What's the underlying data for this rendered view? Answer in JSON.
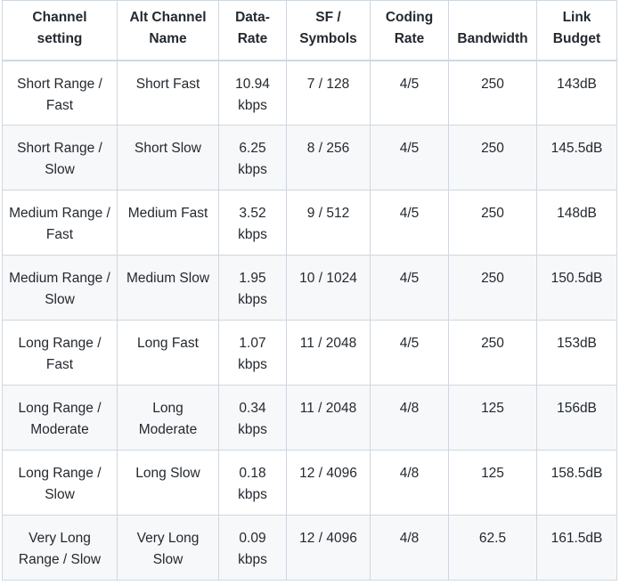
{
  "table": {
    "headers": [
      "Channel setting",
      "Alt Channel Name",
      "Data-Rate",
      "SF / Symbols",
      "Coding Rate",
      "Bandwidth",
      "Link Budget"
    ],
    "rows": [
      [
        "Short Range / Fast",
        "Short Fast",
        "10.94 kbps",
        "7 / 128",
        "4/5",
        "250",
        "143dB"
      ],
      [
        "Short Range / Slow",
        "Short Slow",
        "6.25 kbps",
        "8 / 256",
        "4/5",
        "250",
        "145.5dB"
      ],
      [
        "Medium Range / Fast",
        "Medium Fast",
        "3.52 kbps",
        "9 / 512",
        "4/5",
        "250",
        "148dB"
      ],
      [
        "Medium Range / Slow",
        "Medium Slow",
        "1.95 kbps",
        "10 / 1024",
        "4/5",
        "250",
        "150.5dB"
      ],
      [
        "Long Range / Fast",
        "Long Fast",
        "1.07 kbps",
        "11 / 2048",
        "4/5",
        "250",
        "153dB"
      ],
      [
        "Long Range / Moderate",
        "Long Moderate",
        "0.34 kbps",
        "11 / 2048",
        "4/8",
        "125",
        "156dB"
      ],
      [
        "Long Range / Slow",
        "Long Slow",
        "0.18 kbps",
        "12 / 4096",
        "4/8",
        "125",
        "158.5dB"
      ],
      [
        "Very Long Range / Slow",
        "Very Long Slow",
        "0.09 kbps",
        "12 / 4096",
        "4/8",
        "62.5",
        "161.5dB"
      ]
    ]
  }
}
